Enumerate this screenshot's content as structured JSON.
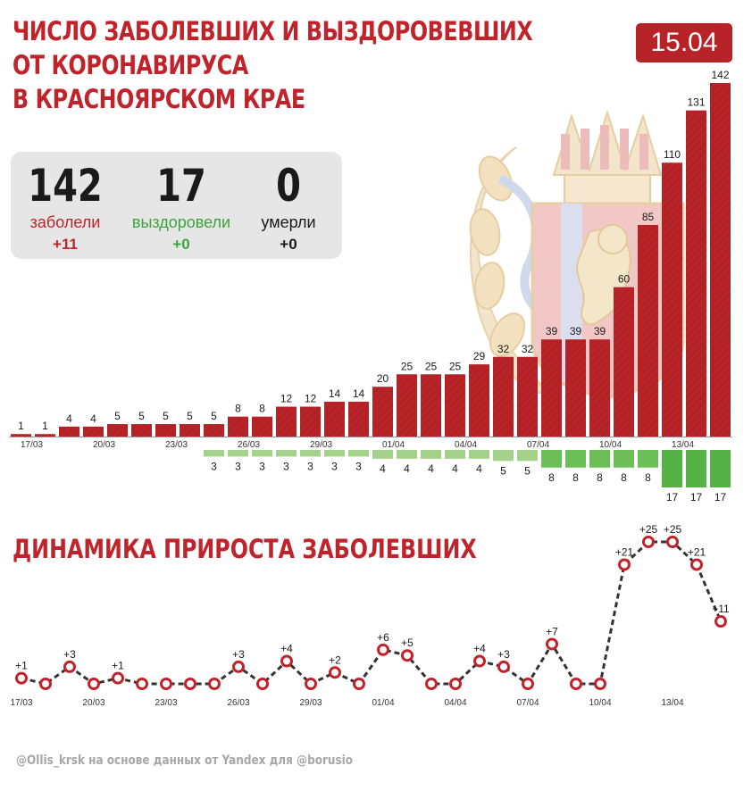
{
  "header": {
    "title_lines": [
      "ЧИСЛО ЗАБОЛЕВШИХ И ВЫЗДОРОВЕВШИХ",
      "ОТ КОРОНАВИРУСА",
      "В КРАСНОЯРСКОМ КРАЕ"
    ],
    "date": "15.04"
  },
  "stats": {
    "cases": {
      "value": "142",
      "label": "заболели",
      "delta": "+11"
    },
    "recovered": {
      "value": "17",
      "label": "выздоровели",
      "delta": "+0"
    },
    "deaths": {
      "value": "0",
      "label": "умерли",
      "delta": "+0"
    }
  },
  "subtitle": "ДИНАМИКА ПРИРОСТА ЗАБОЛЕВШИХ",
  "footer": "@Ollis_krsk на основе данных от Yandex для @borusio",
  "colors": {
    "cases": "#b82327",
    "recovered": "#5cb84c",
    "recovered_light": "#a8d38a",
    "accent": "#c0232a"
  },
  "chart_data": [
    {
      "type": "bar",
      "tick_labels": [
        "17/03",
        "20/03",
        "23/03",
        "26/03",
        "29/03",
        "01/04",
        "04/04",
        "07/04",
        "10/04",
        "13/04"
      ],
      "tick_every": 3,
      "series": [
        {
          "values": [
            1,
            1,
            4,
            4,
            5,
            5,
            5,
            5,
            5,
            8,
            8,
            12,
            12,
            14,
            14,
            20,
            25,
            25,
            25,
            29,
            32,
            32,
            39,
            39,
            39,
            60,
            85,
            110,
            131,
            142
          ]
        },
        {
          "values": [
            null,
            null,
            null,
            null,
            null,
            null,
            null,
            null,
            3,
            3,
            3,
            3,
            3,
            3,
            3,
            4,
            4,
            4,
            4,
            4,
            5,
            5,
            8,
            8,
            8,
            8,
            8,
            17,
            17,
            17
          ]
        }
      ]
    },
    {
      "type": "line",
      "tick_labels": [
        "17/03",
        "20/03",
        "23/03",
        "26/03",
        "29/03",
        "01/04",
        "04/04",
        "07/04",
        "10/04",
        "13/04"
      ],
      "tick_every": 3,
      "values": [
        1,
        0,
        3,
        0,
        1,
        0,
        0,
        0,
        0,
        3,
        0,
        4,
        0,
        2,
        0,
        6,
        5,
        0,
        0,
        4,
        3,
        0,
        7,
        0,
        0,
        21,
        25,
        25,
        21,
        11
      ],
      "point_labels": [
        "+1",
        "",
        "+3",
        "",
        "+1",
        "",
        "",
        "",
        "",
        "+3",
        "",
        "+4",
        "",
        "+2",
        "",
        "+6",
        "+5",
        "",
        "",
        "+4",
        "+3",
        "",
        "+7",
        "",
        "",
        "+21",
        "+25",
        "+25",
        "+21",
        "+11"
      ]
    }
  ]
}
